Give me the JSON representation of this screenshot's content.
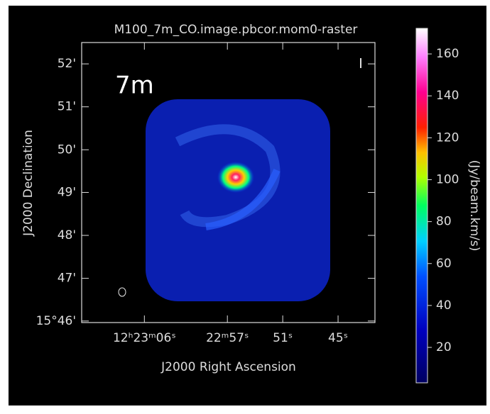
{
  "chart_data": {
    "type": "image",
    "title": "M100_7m_CO.image.pbcor.mom0-raster",
    "annotation": "7m",
    "xlabel": "J2000 Right Ascension",
    "ylabel": "J2000 Declination",
    "colorbar_label": "(Jy/beam.km/s)",
    "xlim": [
      72.8,
      41
    ],
    "xticks": [
      {
        "value": 66,
        "label": "12ʰ23ᵐ06ˢ"
      },
      {
        "value": 57,
        "label": "22ᵐ57ˢ"
      },
      {
        "value": 51,
        "label": "51ˢ"
      },
      {
        "value": 45,
        "label": "45ˢ"
      }
    ],
    "ylim": [
      15.7661,
      15.875
    ],
    "yticks": [
      {
        "value": 15.7667,
        "label": "15°46'"
      },
      {
        "value": 15.7833,
        "label": "47'"
      },
      {
        "value": 15.8,
        "label": "48'"
      },
      {
        "value": 15.8167,
        "label": "49'"
      },
      {
        "value": 15.8333,
        "label": "50'"
      },
      {
        "value": 15.85,
        "label": "51'"
      },
      {
        "value": 15.8667,
        "label": "52'"
      }
    ],
    "clim": [
      3.1,
      172.2
    ],
    "cticks": [
      20,
      40,
      60,
      80,
      100,
      120,
      140,
      160
    ]
  }
}
